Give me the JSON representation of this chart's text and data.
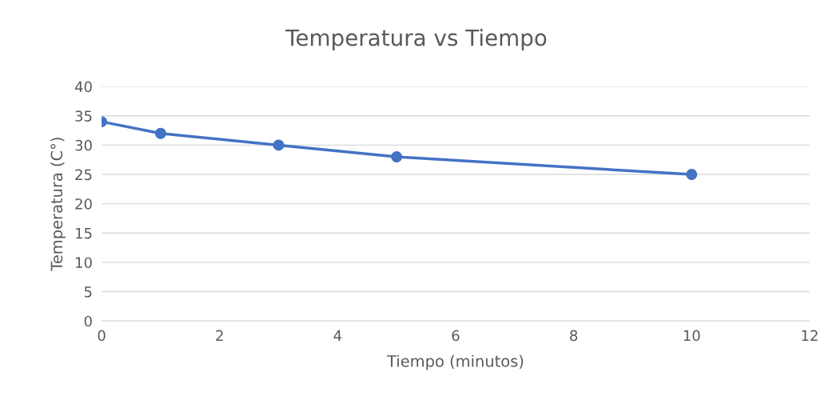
{
  "chart_data": {
    "type": "line",
    "title": "Temperatura vs Tiempo",
    "xlabel": "Tiempo (minutos)",
    "ylabel": "Temperatura (C°)",
    "x": [
      0,
      1,
      3,
      5,
      10
    ],
    "series": [
      {
        "color": "#4472c4",
        "values": [
          34,
          32,
          30,
          28,
          25
        ]
      }
    ],
    "xlim": [
      0,
      12
    ],
    "xticks": [
      0,
      2,
      4,
      6,
      8,
      10,
      12
    ],
    "ylim": [
      0,
      40
    ],
    "yticks": [
      0,
      5,
      10,
      15,
      20,
      25,
      30,
      35,
      40
    ],
    "grid": "y",
    "marker": "circle",
    "line_style": "solid",
    "legend": false
  }
}
